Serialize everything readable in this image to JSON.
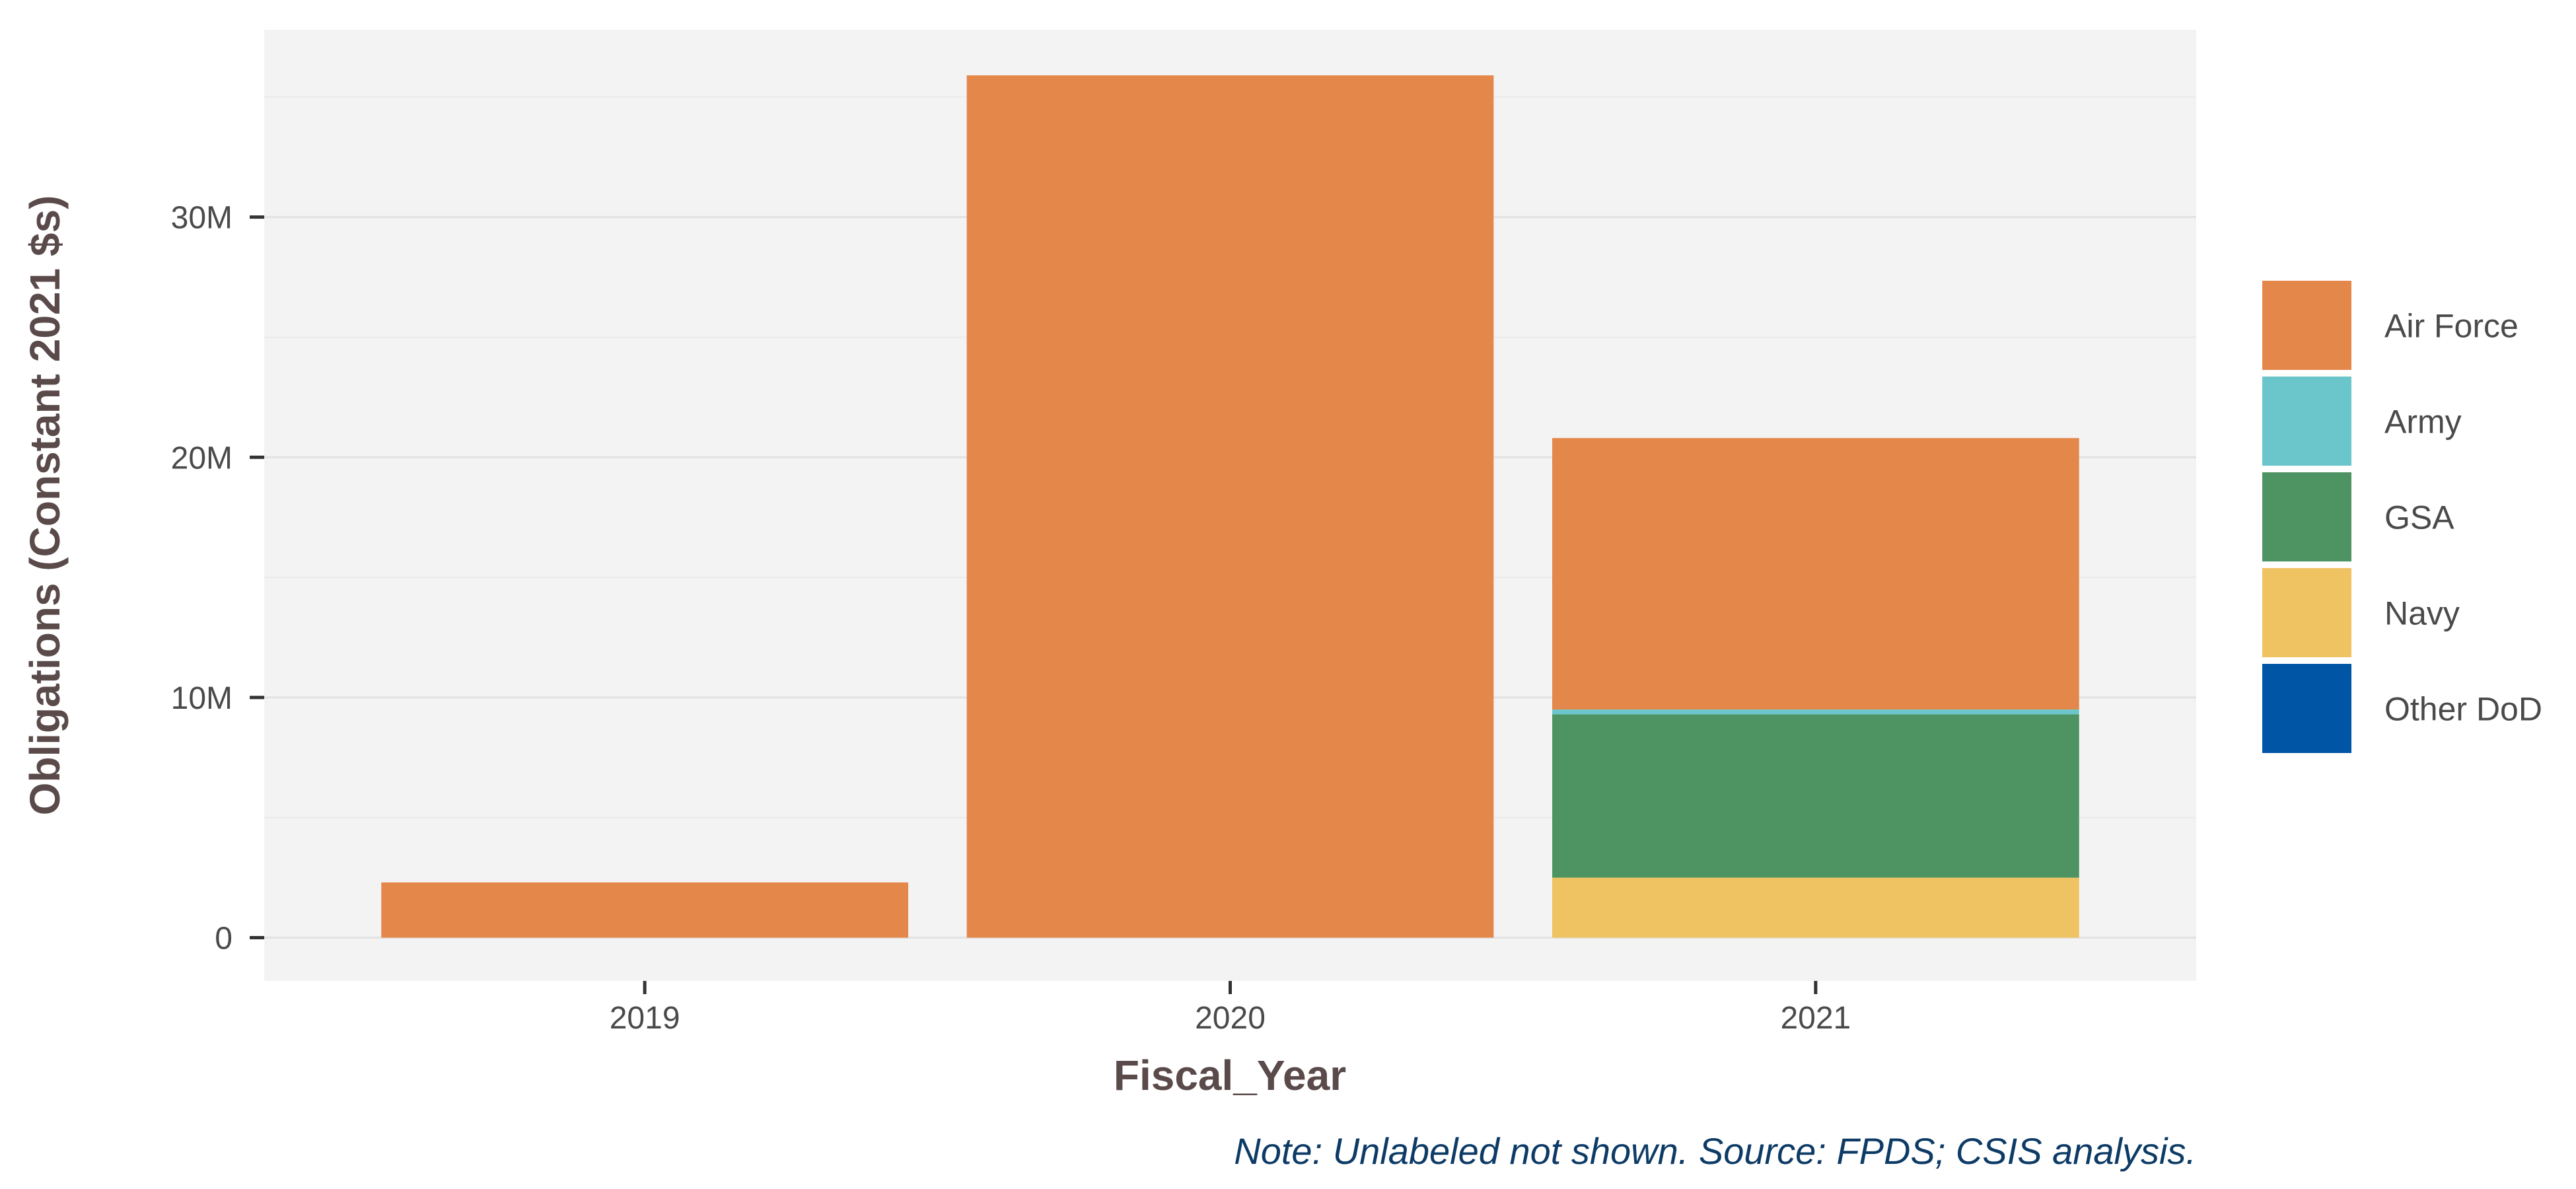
{
  "chart_data": {
    "type": "bar",
    "stacked": true,
    "categories": [
      "2019",
      "2020",
      "2021"
    ],
    "series": [
      {
        "name": "Air Force",
        "color": "#E4874A",
        "values": [
          2300000,
          35900000,
          11300000
        ]
      },
      {
        "name": "Army",
        "color": "#6AC6CB",
        "values": [
          0,
          0,
          200000
        ]
      },
      {
        "name": "GSA",
        "color": "#4E9463",
        "values": [
          0,
          0,
          6800000
        ]
      },
      {
        "name": "Navy",
        "color": "#EFC262",
        "values": [
          0,
          0,
          2500000
        ]
      },
      {
        "name": "Other DoD",
        "color": "#0055A4",
        "values": [
          0,
          0,
          0
        ]
      }
    ],
    "stack_order_bottom_to_top": [
      "Navy",
      "GSA",
      "Army",
      "Air Force"
    ],
    "xlabel": "Fiscal_Year",
    "ylabel": "Obligations (Constant 2021 $s)",
    "ylim": [
      -1800000,
      37800000
    ],
    "yticks": [
      0,
      10000000,
      20000000,
      30000000
    ],
    "ytick_labels": [
      "0",
      "10M",
      "20M",
      "30M"
    ],
    "grid": true,
    "legend_position": "right",
    "note": "Note: Unlabeled not shown. Source: FPDS; CSIS analysis.",
    "panel_background": "#F3F3F3"
  }
}
